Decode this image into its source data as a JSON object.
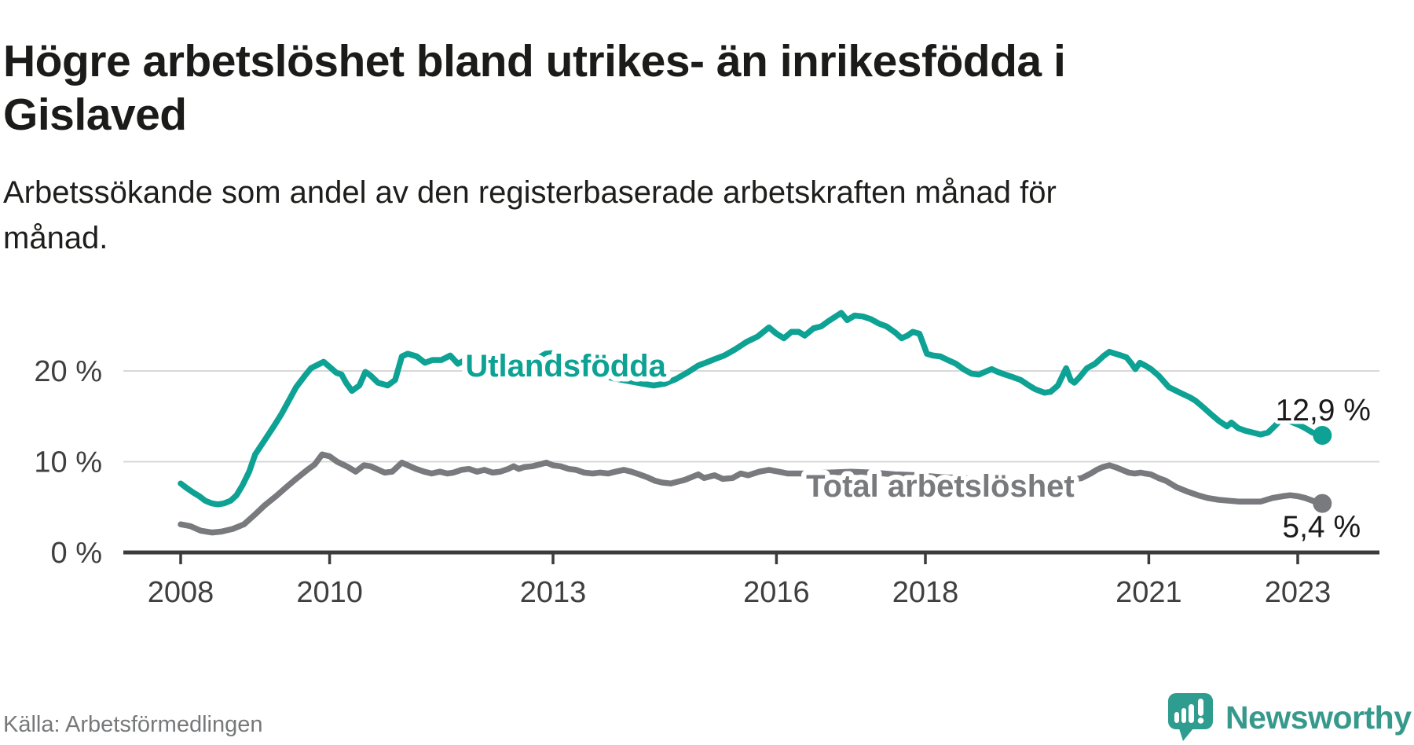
{
  "header": {
    "title_lines": [
      "Högre arbetslöshet bland utrikes- än inrikesfödda i",
      "Gislaved"
    ],
    "subtitle_lines": [
      "Arbetssökande som andel av den registerbaserade arbetskraften månad för",
      "månad."
    ]
  },
  "footer": {
    "source": "Källa: Arbetsförmedlingen",
    "brand_name": "Newsworthy"
  },
  "colors": {
    "foreign_born_line": "#0da294",
    "total_line": "#797a7e",
    "axis": "#3b3b3b",
    "tick_label": "#3f3f3f",
    "grid": "#d8d8d8",
    "value_label": "#1a1a1a",
    "source_text": "#77787a",
    "brand_teal": "#37998c",
    "brand_icon": "#2e9c8e",
    "brand_icon_shade": "#1f8578"
  },
  "chart_data": {
    "type": "line",
    "title": "Högre arbetslöshet bland utrikes- än inrikesfödda i Gislaved",
    "subtitle": "Arbetssökande som andel av den registerbaserade arbetskraften månad för månad.",
    "source": "Källa: Arbetsförmedlingen",
    "xlabel": "",
    "ylabel": "",
    "grid": "horizontal",
    "legend": "inline-labels",
    "x_axis": {
      "ticks": [
        2008,
        2010,
        2013,
        2016,
        2018,
        2021,
        2023
      ],
      "range": [
        2007.24,
        2024.08
      ]
    },
    "y_axis": {
      "unit": "%",
      "range": [
        0,
        28
      ],
      "ticks": [
        {
          "value": 0,
          "label": "0 %"
        },
        {
          "value": 10,
          "label": "10 %"
        },
        {
          "value": 20,
          "label": "20 %"
        }
      ]
    },
    "series": [
      {
        "id": "utlandsfodda",
        "name": "Utlandsfödda",
        "color": "#0da294",
        "end_label": "12,9 %",
        "end_value": 12.9,
        "label_anchor": {
          "x": 2013.17,
          "y": 20.6
        },
        "points": [
          [
            2008.0,
            7.6
          ],
          [
            2008.08,
            7.1
          ],
          [
            2008.17,
            6.6
          ],
          [
            2008.25,
            6.2
          ],
          [
            2008.33,
            5.7
          ],
          [
            2008.42,
            5.4
          ],
          [
            2008.5,
            5.3
          ],
          [
            2008.58,
            5.4
          ],
          [
            2008.67,
            5.7
          ],
          [
            2008.75,
            6.3
          ],
          [
            2008.83,
            7.4
          ],
          [
            2008.92,
            8.9
          ],
          [
            2009.0,
            10.8
          ],
          [
            2009.13,
            12.4
          ],
          [
            2009.25,
            13.9
          ],
          [
            2009.35,
            15.2
          ],
          [
            2009.45,
            16.7
          ],
          [
            2009.55,
            18.2
          ],
          [
            2009.67,
            19.5
          ],
          [
            2009.75,
            20.3
          ],
          [
            2009.92,
            21.0
          ],
          [
            2010.02,
            20.3
          ],
          [
            2010.09,
            19.8
          ],
          [
            2010.16,
            19.6
          ],
          [
            2010.22,
            18.7
          ],
          [
            2010.3,
            17.8
          ],
          [
            2010.4,
            18.4
          ],
          [
            2010.48,
            19.9
          ],
          [
            2010.55,
            19.5
          ],
          [
            2010.65,
            18.7
          ],
          [
            2010.78,
            18.4
          ],
          [
            2010.88,
            19.0
          ],
          [
            2010.97,
            21.6
          ],
          [
            2011.05,
            21.9
          ],
          [
            2011.17,
            21.6
          ],
          [
            2011.28,
            20.9
          ],
          [
            2011.38,
            21.2
          ],
          [
            2011.5,
            21.2
          ],
          [
            2011.62,
            21.7
          ],
          [
            2011.72,
            20.8
          ],
          [
            2011.85,
            21.3
          ],
          [
            2012.0,
            21.5
          ],
          [
            2012.15,
            21.2
          ],
          [
            2012.3,
            20.9
          ],
          [
            2012.45,
            20.7
          ],
          [
            2012.6,
            20.8
          ],
          [
            2012.75,
            21.2
          ],
          [
            2012.9,
            21.9
          ],
          [
            2013.05,
            22.0
          ],
          [
            2013.2,
            21.2
          ],
          [
            2013.4,
            20.3
          ],
          [
            2013.6,
            19.7
          ],
          [
            2013.8,
            19.2
          ],
          [
            2014.0,
            18.9
          ],
          [
            2014.2,
            18.6
          ],
          [
            2014.35,
            18.4
          ],
          [
            2014.5,
            18.6
          ],
          [
            2014.65,
            19.1
          ],
          [
            2014.8,
            19.8
          ],
          [
            2014.95,
            20.6
          ],
          [
            2015.05,
            20.9
          ],
          [
            2015.17,
            21.3
          ],
          [
            2015.3,
            21.7
          ],
          [
            2015.45,
            22.4
          ],
          [
            2015.6,
            23.2
          ],
          [
            2015.75,
            23.8
          ],
          [
            2015.9,
            24.8
          ],
          [
            2016.0,
            24.1
          ],
          [
            2016.1,
            23.6
          ],
          [
            2016.2,
            24.3
          ],
          [
            2016.3,
            24.3
          ],
          [
            2016.38,
            23.9
          ],
          [
            2016.5,
            24.7
          ],
          [
            2016.6,
            24.9
          ],
          [
            2016.7,
            25.5
          ],
          [
            2016.87,
            26.4
          ],
          [
            2016.95,
            25.6
          ],
          [
            2017.05,
            26.1
          ],
          [
            2017.16,
            26.0
          ],
          [
            2017.27,
            25.7
          ],
          [
            2017.38,
            25.2
          ],
          [
            2017.48,
            24.9
          ],
          [
            2017.6,
            24.2
          ],
          [
            2017.68,
            23.6
          ],
          [
            2017.76,
            23.9
          ],
          [
            2017.83,
            24.3
          ],
          [
            2017.92,
            24.1
          ],
          [
            2017.97,
            23.0
          ],
          [
            2018.02,
            21.9
          ],
          [
            2018.1,
            21.7
          ],
          [
            2018.2,
            21.6
          ],
          [
            2018.3,
            21.2
          ],
          [
            2018.41,
            20.8
          ],
          [
            2018.51,
            20.2
          ],
          [
            2018.62,
            19.7
          ],
          [
            2018.72,
            19.6
          ],
          [
            2018.83,
            20.0
          ],
          [
            2018.89,
            20.2
          ],
          [
            2018.97,
            19.9
          ],
          [
            2019.07,
            19.6
          ],
          [
            2019.18,
            19.3
          ],
          [
            2019.28,
            19.0
          ],
          [
            2019.39,
            18.4
          ],
          [
            2019.47,
            18.0
          ],
          [
            2019.6,
            17.6
          ],
          [
            2019.68,
            17.7
          ],
          [
            2019.78,
            18.4
          ],
          [
            2019.89,
            20.3
          ],
          [
            2019.95,
            19.0
          ],
          [
            2020.0,
            18.7
          ],
          [
            2020.07,
            19.3
          ],
          [
            2020.17,
            20.3
          ],
          [
            2020.28,
            20.8
          ],
          [
            2020.4,
            21.7
          ],
          [
            2020.47,
            22.1
          ],
          [
            2020.55,
            21.9
          ],
          [
            2020.63,
            21.7
          ],
          [
            2020.7,
            21.5
          ],
          [
            2020.76,
            20.9
          ],
          [
            2020.82,
            20.2
          ],
          [
            2020.88,
            20.9
          ],
          [
            2020.95,
            20.6
          ],
          [
            2021.03,
            20.2
          ],
          [
            2021.13,
            19.5
          ],
          [
            2021.27,
            18.2
          ],
          [
            2021.42,
            17.6
          ],
          [
            2021.55,
            17.1
          ],
          [
            2021.63,
            16.7
          ],
          [
            2021.73,
            16.0
          ],
          [
            2021.84,
            15.2
          ],
          [
            2021.94,
            14.5
          ],
          [
            2022.05,
            13.9
          ],
          [
            2022.11,
            14.3
          ],
          [
            2022.2,
            13.7
          ],
          [
            2022.3,
            13.4
          ],
          [
            2022.4,
            13.2
          ],
          [
            2022.5,
            13.0
          ],
          [
            2022.6,
            13.2
          ],
          [
            2022.7,
            14.0
          ],
          [
            2022.78,
            14.7
          ],
          [
            2022.88,
            14.5
          ],
          [
            2023.0,
            14.1
          ],
          [
            2023.1,
            13.7
          ],
          [
            2023.2,
            13.2
          ],
          [
            2023.33,
            12.9
          ]
        ]
      },
      {
        "id": "total",
        "name": "Total arbetslöshet",
        "color": "#797a7e",
        "end_label": "5,4 %",
        "end_value": 5.4,
        "label_anchor": {
          "x": 2018.2,
          "y": 7.35
        },
        "points": [
          [
            2008.0,
            3.1
          ],
          [
            2008.13,
            2.9
          ],
          [
            2008.27,
            2.4
          ],
          [
            2008.42,
            2.2
          ],
          [
            2008.55,
            2.3
          ],
          [
            2008.7,
            2.6
          ],
          [
            2008.85,
            3.1
          ],
          [
            2009.0,
            4.2
          ],
          [
            2009.13,
            5.2
          ],
          [
            2009.28,
            6.2
          ],
          [
            2009.42,
            7.2
          ],
          [
            2009.55,
            8.1
          ],
          [
            2009.7,
            9.1
          ],
          [
            2009.8,
            9.7
          ],
          [
            2009.9,
            10.8
          ],
          [
            2010.0,
            10.6
          ],
          [
            2010.1,
            10.0
          ],
          [
            2010.25,
            9.4
          ],
          [
            2010.35,
            8.9
          ],
          [
            2010.46,
            9.6
          ],
          [
            2010.55,
            9.5
          ],
          [
            2010.63,
            9.2
          ],
          [
            2010.74,
            8.8
          ],
          [
            2010.84,
            8.9
          ],
          [
            2010.97,
            9.9
          ],
          [
            2011.05,
            9.6
          ],
          [
            2011.16,
            9.2
          ],
          [
            2011.27,
            8.9
          ],
          [
            2011.37,
            8.7
          ],
          [
            2011.48,
            8.9
          ],
          [
            2011.58,
            8.7
          ],
          [
            2011.66,
            8.8
          ],
          [
            2011.77,
            9.1
          ],
          [
            2011.87,
            9.2
          ],
          [
            2011.98,
            8.9
          ],
          [
            2012.08,
            9.1
          ],
          [
            2012.19,
            8.8
          ],
          [
            2012.29,
            8.9
          ],
          [
            2012.4,
            9.2
          ],
          [
            2012.47,
            9.5
          ],
          [
            2012.54,
            9.2
          ],
          [
            2012.61,
            9.4
          ],
          [
            2012.72,
            9.5
          ],
          [
            2012.82,
            9.7
          ],
          [
            2012.91,
            9.9
          ],
          [
            2013.0,
            9.6
          ],
          [
            2013.1,
            9.5
          ],
          [
            2013.21,
            9.2
          ],
          [
            2013.31,
            9.1
          ],
          [
            2013.42,
            8.8
          ],
          [
            2013.53,
            8.7
          ],
          [
            2013.63,
            8.8
          ],
          [
            2013.74,
            8.7
          ],
          [
            2013.84,
            8.9
          ],
          [
            2013.95,
            9.1
          ],
          [
            2014.05,
            8.9
          ],
          [
            2014.16,
            8.6
          ],
          [
            2014.26,
            8.3
          ],
          [
            2014.37,
            7.9
          ],
          [
            2014.47,
            7.7
          ],
          [
            2014.58,
            7.6
          ],
          [
            2014.77,
            8.0
          ],
          [
            2014.95,
            8.6
          ],
          [
            2015.03,
            8.2
          ],
          [
            2015.17,
            8.5
          ],
          [
            2015.28,
            8.1
          ],
          [
            2015.41,
            8.2
          ],
          [
            2015.52,
            8.7
          ],
          [
            2015.62,
            8.5
          ],
          [
            2015.77,
            8.9
          ],
          [
            2015.9,
            9.1
          ],
          [
            2016.03,
            8.9
          ],
          [
            2016.15,
            8.7
          ],
          [
            2016.4,
            8.7
          ],
          [
            2016.7,
            8.8
          ],
          [
            2017.0,
            8.9
          ],
          [
            2017.3,
            8.8
          ],
          [
            2017.6,
            8.6
          ],
          [
            2017.9,
            8.5
          ],
          [
            2018.2,
            8.3
          ],
          [
            2018.5,
            8.2
          ],
          [
            2018.8,
            8.0
          ],
          [
            2019.1,
            7.8
          ],
          [
            2019.4,
            7.6
          ],
          [
            2019.7,
            7.6
          ],
          [
            2019.9,
            7.9
          ],
          [
            2020.1,
            8.2
          ],
          [
            2020.22,
            8.7
          ],
          [
            2020.3,
            9.1
          ],
          [
            2020.38,
            9.4
          ],
          [
            2020.47,
            9.6
          ],
          [
            2020.55,
            9.4
          ],
          [
            2020.64,
            9.1
          ],
          [
            2020.73,
            8.8
          ],
          [
            2020.81,
            8.7
          ],
          [
            2020.89,
            8.8
          ],
          [
            2020.95,
            8.7
          ],
          [
            2021.03,
            8.6
          ],
          [
            2021.13,
            8.2
          ],
          [
            2021.23,
            7.9
          ],
          [
            2021.37,
            7.2
          ],
          [
            2021.52,
            6.7
          ],
          [
            2021.66,
            6.3
          ],
          [
            2021.79,
            6.0
          ],
          [
            2021.94,
            5.8
          ],
          [
            2022.08,
            5.7
          ],
          [
            2022.22,
            5.6
          ],
          [
            2022.35,
            5.6
          ],
          [
            2022.5,
            5.6
          ],
          [
            2022.66,
            6.0
          ],
          [
            2022.8,
            6.2
          ],
          [
            2022.9,
            6.3
          ],
          [
            2023.0,
            6.2
          ],
          [
            2023.1,
            6.0
          ],
          [
            2023.2,
            5.7
          ],
          [
            2023.33,
            5.4
          ]
        ]
      }
    ]
  }
}
